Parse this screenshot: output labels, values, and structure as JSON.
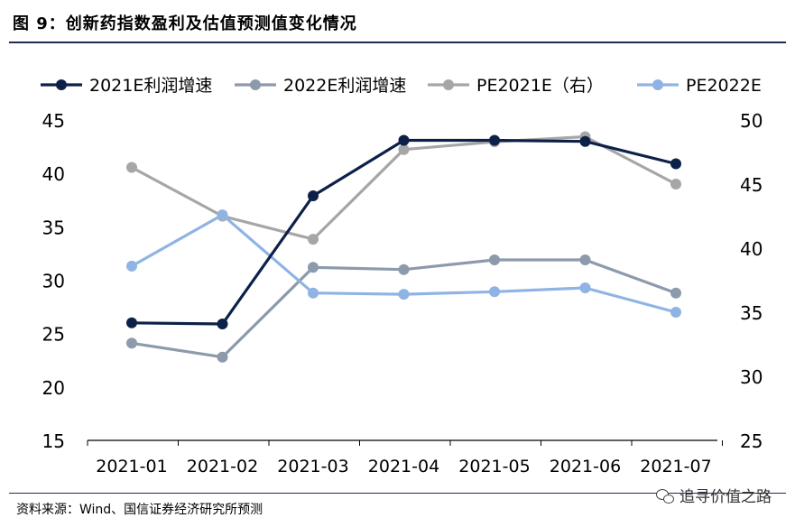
{
  "header": {
    "title": "图 9：创新药指数盈利及估值预测值变化情况"
  },
  "footer": {
    "source": "资料来源：Wind、国信证券经济研究所预测",
    "watermark": "追寻价值之路",
    "watermark_icon": "wechat-icon"
  },
  "chart_data": {
    "type": "line",
    "categories": [
      "2021-01",
      "2021-02",
      "2021-03",
      "2021-04",
      "2021-05",
      "2021-06",
      "2021-07"
    ],
    "y_left": {
      "ylim": [
        15,
        45
      ],
      "ticks": [
        15,
        20,
        25,
        30,
        35,
        40,
        45
      ]
    },
    "y_right": {
      "ylim": [
        25,
        50
      ],
      "ticks": [
        25,
        30,
        35,
        40,
        45,
        50
      ]
    },
    "grid": false,
    "legend_position": "top",
    "series": [
      {
        "name": "2021E利润增速",
        "axis": "left",
        "color": "#0d2148",
        "values": [
          26.0,
          25.9,
          37.9,
          43.1,
          43.1,
          43.0,
          40.9
        ]
      },
      {
        "name": "2022E利润增速",
        "axis": "left",
        "color": "#8c9aab",
        "values": [
          24.1,
          22.8,
          31.2,
          31.0,
          31.9,
          31.9,
          28.8
        ]
      },
      {
        "name": "PE2021E（右）",
        "axis": "right",
        "color": "#a6a6a6",
        "values": [
          46.3,
          42.5,
          40.7,
          47.7,
          48.3,
          48.7,
          45.0
        ]
      },
      {
        "name": "PE2022E",
        "axis": "right",
        "color": "#8fb4e3",
        "values": [
          38.6,
          42.6,
          36.5,
          36.4,
          36.6,
          36.9,
          35.0
        ]
      }
    ]
  }
}
